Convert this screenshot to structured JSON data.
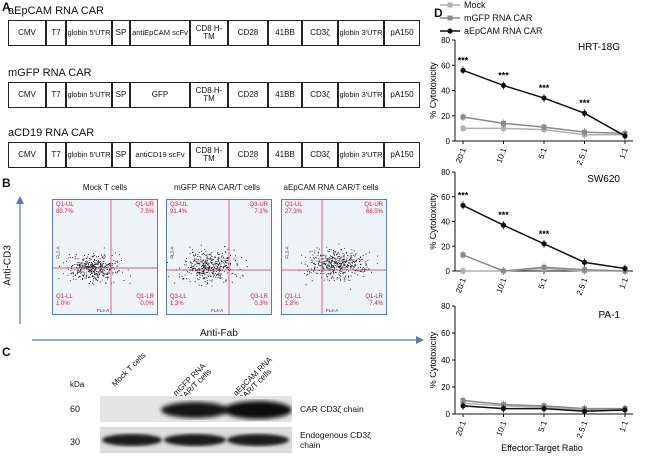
{
  "panels": {
    "a": "A",
    "b": "B",
    "c": "C",
    "d": "D"
  },
  "constructs": [
    {
      "title": "aEpCAM RNA CAR",
      "segments": [
        "CMV",
        "T7",
        "globin 5'UTR",
        "SP",
        "antiEpCAM scFv",
        "CD8 H-TM",
        "CD28",
        "41BB",
        "CD3ζ",
        "globin 3'UTR",
        "pA150"
      ]
    },
    {
      "title": "mGFP RNA CAR",
      "segments": [
        "CMV",
        "T7",
        "globin 5'UTR",
        "SP",
        "GFP",
        "CD8 H-TM",
        "CD28",
        "41BB",
        "CD3ζ",
        "globin 3'UTR",
        "pA150"
      ]
    },
    {
      "title": "aCD19 RNA CAR",
      "segments": [
        "CMV",
        "T7",
        "globin 5'UTR",
        "SP",
        "antiCD19 scFv",
        "CD8 H-TM",
        "CD28",
        "41BB",
        "CD3ζ",
        "globin 3'UTR",
        "pA150"
      ]
    }
  ],
  "flow": {
    "y_axis": "Anti-CD3",
    "x_axis": "Anti-Fab",
    "channel_y": "FL2-A",
    "channel_x": "FL4-A",
    "plots": [
      {
        "title": "Mock T cells",
        "ul": "Q1-UL",
        "ul_pct": "89.7%",
        "ur": "Q1-UR",
        "ur_pct": "7.5%",
        "ll": "Q1-LL",
        "ll_pct": "1.0%",
        "lr": "Q1-LR",
        "lr_pct": "0.0%"
      },
      {
        "title": "mGFP RNA CAR/T cells",
        "ul": "Q3-UL",
        "ul_pct": "91.4%",
        "ur": "Q3-UR",
        "ur_pct": "7.1%",
        "ll": "Q3-LL",
        "ll_pct": "1.3%",
        "lr": "Q3-LR",
        "lr_pct": "0.3%"
      },
      {
        "title": "aEpCAM RNA CAR/T cells",
        "ul": "Q1-UL",
        "ul_pct": "27.3%",
        "ur": "Q1-UR",
        "ur_pct": "66.5%",
        "ll": "Q1-LL",
        "ll_pct": "1.8%",
        "lr": "Q1-LR",
        "lr_pct": "7.4%"
      }
    ]
  },
  "western": {
    "unit": "kDa",
    "lanes": [
      "Mock T cells",
      "mGFP RNA CAR/T cells",
      "aEpCAM RNA CAR/T cells"
    ],
    "markers": [
      "60",
      "30"
    ],
    "bands": [
      "CAR CD3ζ chain",
      "Endogenous CD3ζ chain"
    ]
  },
  "chart_data": {
    "type": "line",
    "categories": [
      "20:1",
      "10:1",
      "5:1",
      "2.5:1",
      "1:1"
    ],
    "xlabel": "Effector:Target Ratio",
    "ylabel": "% Cytotoxicity",
    "legend": [
      "Mock",
      "mGFP RNA CAR",
      "aEpCAM RNA CAR"
    ],
    "legend_position": "top",
    "subplots": [
      {
        "title": "HRT-18G",
        "ylim": [
          0,
          80
        ],
        "yticks": [
          0,
          20,
          40,
          60,
          80
        ],
        "series": [
          {
            "name": "Mock",
            "values": [
              10,
              10,
              9,
              5,
              5
            ]
          },
          {
            "name": "mGFP RNA CAR",
            "values": [
              19,
              14,
              11,
              7,
              6
            ]
          },
          {
            "name": "aEpCAM RNA CAR",
            "values": [
              56,
              44,
              34,
              22,
              4
            ]
          }
        ],
        "significance": [
          "***",
          "***",
          "***",
          "***",
          ""
        ]
      },
      {
        "title": "SW620",
        "ylim": [
          0,
          80
        ],
        "yticks": [
          0,
          20,
          40,
          60,
          80
        ],
        "series": [
          {
            "name": "Mock",
            "values": [
              0,
              0,
              2,
              0,
              0
            ]
          },
          {
            "name": "mGFP RNA CAR",
            "values": [
              13,
              0,
              3,
              1,
              0
            ]
          },
          {
            "name": "aEpCAM RNA CAR",
            "values": [
              53,
              37,
              22,
              7,
              2
            ]
          }
        ],
        "significance": [
          "***",
          "***",
          "***",
          "",
          ""
        ]
      },
      {
        "title": "PA-1",
        "ylim": [
          0,
          80
        ],
        "yticks": [
          0,
          20,
          40,
          60,
          80
        ],
        "series": [
          {
            "name": "Mock",
            "values": [
              8,
              6,
              5,
              3,
              4
            ]
          },
          {
            "name": "mGFP RNA CAR",
            "values": [
              10,
              7,
              6,
              4,
              4
            ]
          },
          {
            "name": "aEpCAM RNA CAR",
            "values": [
              6,
              4,
              4,
              2,
              3
            ]
          }
        ],
        "significance": [
          "",
          "",
          "",
          "",
          ""
        ]
      }
    ]
  },
  "colors": {
    "mock": "#b0b0b0",
    "mgfp": "#8a8a8a",
    "aepcam": "#111111",
    "gate": "#e0244a",
    "frame": "#5a7ab5"
  }
}
